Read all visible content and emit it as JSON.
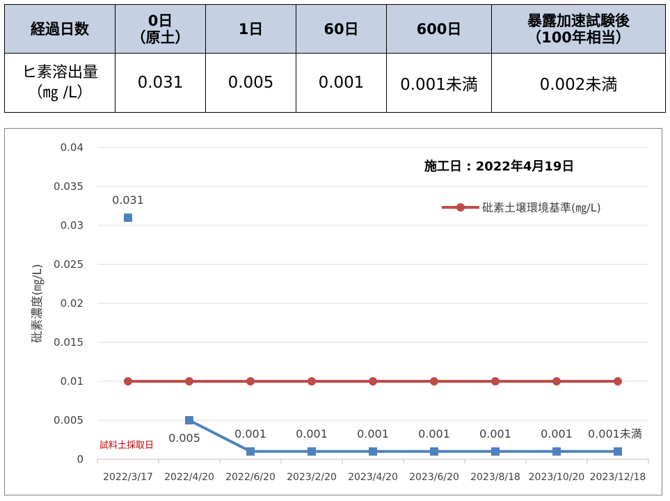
{
  "table": {
    "headers": [
      {
        "line1": "経過日数",
        "line2": ""
      },
      {
        "line1": "0日",
        "line2": "（原土）"
      },
      {
        "line1": "1日",
        "line2": ""
      },
      {
        "line1": "60日",
        "line2": ""
      },
      {
        "line1": "600日",
        "line2": ""
      },
      {
        "line1": "暴露加速試験後",
        "line2": "（100年相当）"
      }
    ],
    "row": {
      "label_line1": "ヒ素溶出量",
      "label_line2": "（㎎ /L）",
      "values": [
        "0.031",
        "0.005",
        "0.001",
        "0.001未満",
        "0.002未満"
      ]
    }
  },
  "chart_data": {
    "type": "line",
    "ylabel": "砒素濃度(㎎/L)",
    "ylim": [
      0,
      0.04
    ],
    "yticks": [
      "0",
      "0.005",
      "0.01",
      "0.015",
      "0.02",
      "0.025",
      "0.03",
      "0.035",
      "0.04"
    ],
    "categories": [
      "2022/3/17",
      "2022/4/20",
      "2022/6/20",
      "2023/2/20",
      "2023/4/20",
      "2023/6/20",
      "2023/8/18",
      "2023/10/20",
      "2023/12/18"
    ],
    "series": [
      {
        "name": "砒素土壌環境基準(㎎/L)",
        "color": "#be4b48",
        "marker": "circle",
        "values": [
          0.01,
          0.01,
          0.01,
          0.01,
          0.01,
          0.01,
          0.01,
          0.01,
          0.01
        ]
      },
      {
        "name": "",
        "color": "#4f81bd",
        "marker": "square",
        "values": [
          0.031,
          0.005,
          0.001,
          0.001,
          0.001,
          0.001,
          0.001,
          0.001,
          0.001
        ],
        "labels": [
          "0.031",
          "0.005",
          "0.001",
          "0.001",
          "0.001",
          "0.001",
          "0.001",
          "0.001",
          "0.001未満"
        ],
        "connected_from_index": 1
      }
    ],
    "annotations": {
      "construction_date": "施工日 : 2022年4月19日",
      "sample_date": "試料土採取日"
    },
    "legend": "top-right",
    "grid": true
  }
}
